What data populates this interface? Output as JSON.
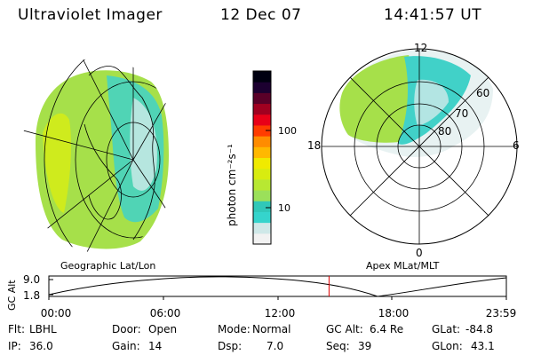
{
  "header": {
    "instrument": "Ultraviolet Imager",
    "date": "12 Dec 07",
    "time": "14:41:57 UT"
  },
  "left_panel": {
    "label": "Geographic Lat/Lon"
  },
  "right_panel": {
    "label": "Apex MLat/MLT",
    "mlt_labels": [
      "12",
      "18",
      "6",
      "0"
    ],
    "mlat_labels": [
      "60",
      "70",
      "80"
    ]
  },
  "colorbar": {
    "label": "photon cm⁻²s⁻¹",
    "ticks": [
      "100",
      "10"
    ],
    "colors": [
      "#f2f2f2",
      "#cfe8e8",
      "#35d4cc",
      "#30c8b8",
      "#9be05a",
      "#b8e832",
      "#d8ec10",
      "#f0ea00",
      "#ffb800",
      "#ff8c00",
      "#ff3c00",
      "#e80018",
      "#a00020",
      "#5a0028",
      "#1c0030",
      "#000010"
    ]
  },
  "altitude_plot": {
    "ylabel": "GC Alt",
    "yticks": [
      "9.0",
      "1.8"
    ],
    "xticks": [
      "00:00",
      "06:00",
      "12:00",
      "18:00",
      "23:59"
    ],
    "current_time_hours": 14.7
  },
  "footer": {
    "row1": [
      {
        "label": "Flt:",
        "value": "LBHL"
      },
      {
        "label": "Door:",
        "value": "Open"
      },
      {
        "label": "Mode:",
        "value": "Normal"
      },
      {
        "label": "GC Alt:",
        "value": "6.4 Re"
      },
      {
        "label": "GLat:",
        "value": "-84.8"
      }
    ],
    "row2": [
      {
        "label": "IP:",
        "value": "36.0"
      },
      {
        "label": "Gain:",
        "value": "14"
      },
      {
        "label": "Dsp:",
        "value": "7.0"
      },
      {
        "label": "Seq:",
        "value": "39"
      },
      {
        "label": "GLon:",
        "value": "43.1"
      }
    ]
  }
}
